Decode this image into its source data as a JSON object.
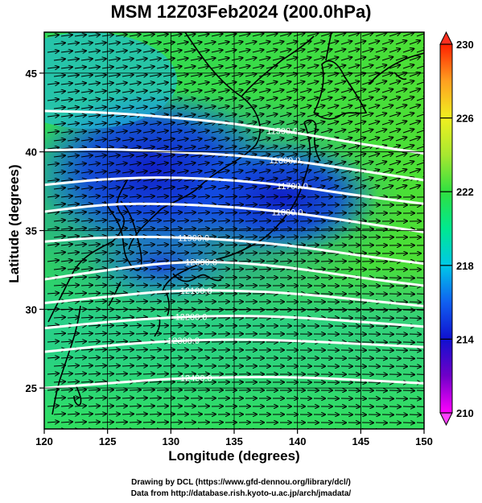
{
  "title": "MSM 12Z03Feb2024 (200.0hPa)",
  "xlabel": "Longitude (degrees)",
  "ylabel": "Latitude  (degrees)",
  "credit_line1": "Drawing by DCL (https://www.gfd-dennou.org/library/dcl/)",
  "credit_line2": "Data from http://database.rish.kyoto-u.ac.jp/arch/jmadata/",
  "chart_data": {
    "type": "heatmap",
    "variable_shading": "temperature (K)",
    "xlim": [
      120,
      150
    ],
    "ylim": [
      22.4,
      47.6
    ],
    "x_ticks": [
      120,
      125,
      130,
      135,
      140,
      145,
      150
    ],
    "x_tick_labels": [
      "120",
      "125",
      "130",
      "135",
      "140",
      "145",
      "150"
    ],
    "y_ticks": [
      25,
      30,
      35,
      40,
      45
    ],
    "y_tick_labels": [
      "25",
      "30",
      "35",
      "40",
      "45"
    ],
    "colorbar": {
      "range": [
        210,
        230
      ],
      "ticks": [
        210,
        214,
        218,
        222,
        226,
        230
      ],
      "tick_labels": [
        "210",
        "214",
        "218",
        "222",
        "226",
        "230"
      ],
      "colormap": [
        "#ff00ff",
        "#7000c8",
        "#1010d0",
        "#1060f0",
        "#00c8e8",
        "#00e890",
        "#30e040",
        "#a8e830",
        "#f0f020",
        "#ffa020",
        "#ff2000"
      ]
    },
    "contours": [
      {
        "label": "11500.0",
        "label_lon": 138.8,
        "points": [
          [
            120,
            42.6
          ],
          [
            125,
            42.5
          ],
          [
            130,
            42.2
          ],
          [
            135,
            41.8
          ],
          [
            140,
            41.2
          ],
          [
            145,
            40.5
          ],
          [
            150,
            39.9
          ]
        ]
      },
      {
        "label": "11600.0",
        "label_lon": 139.0,
        "points": [
          [
            120,
            40.1
          ],
          [
            125,
            40.2
          ],
          [
            130,
            40.0
          ],
          [
            135,
            39.8
          ],
          [
            140,
            39.4
          ],
          [
            145,
            38.8
          ],
          [
            150,
            38.2
          ]
        ]
      },
      {
        "label": "11700.0",
        "label_lon": 139.6,
        "points": [
          [
            120,
            37.9
          ],
          [
            125,
            38.3
          ],
          [
            130,
            38.4
          ],
          [
            135,
            38.2
          ],
          [
            140,
            37.8
          ],
          [
            145,
            37.2
          ],
          [
            150,
            36.7
          ]
        ]
      },
      {
        "label": "11800.0",
        "label_lon": 139.2,
        "points": [
          [
            120,
            36.2
          ],
          [
            125,
            36.7
          ],
          [
            130,
            36.7
          ],
          [
            135,
            36.5
          ],
          [
            140,
            36.1
          ],
          [
            145,
            35.5
          ],
          [
            150,
            34.9
          ]
        ]
      },
      {
        "label": "11900.0",
        "label_lon": 131.8,
        "points": [
          [
            120,
            34.3
          ],
          [
            125,
            34.6
          ],
          [
            130,
            34.6
          ],
          [
            135,
            34.4
          ],
          [
            140,
            34.0
          ],
          [
            145,
            33.4
          ],
          [
            150,
            32.9
          ]
        ]
      },
      {
        "label": "12000.0",
        "label_lon": 132.4,
        "points": [
          [
            120,
            31.9
          ],
          [
            125,
            32.5
          ],
          [
            130,
            33.0
          ],
          [
            135,
            33.0
          ],
          [
            140,
            32.6
          ],
          [
            145,
            32.0
          ],
          [
            150,
            31.5
          ]
        ]
      },
      {
        "label": "12100.0",
        "label_lon": 132.0,
        "points": [
          [
            120,
            30.4
          ],
          [
            125,
            30.8
          ],
          [
            130,
            31.2
          ],
          [
            135,
            31.2
          ],
          [
            140,
            31.0
          ],
          [
            145,
            30.6
          ],
          [
            150,
            30.2
          ]
        ]
      },
      {
        "label": "12200.0",
        "label_lon": 131.6,
        "points": [
          [
            120,
            28.8
          ],
          [
            125,
            29.2
          ],
          [
            130,
            29.5
          ],
          [
            135,
            29.6
          ],
          [
            140,
            29.5
          ],
          [
            145,
            29.2
          ],
          [
            150,
            28.9
          ]
        ]
      },
      {
        "label": "12300.0",
        "label_lon": 131.0,
        "points": [
          [
            120,
            27.3
          ],
          [
            125,
            27.7
          ],
          [
            130,
            28.0
          ],
          [
            135,
            28.1
          ],
          [
            140,
            28.0
          ],
          [
            145,
            27.8
          ],
          [
            150,
            27.6
          ]
        ]
      },
      {
        "label": "12400.0",
        "label_lon": 132.0,
        "points": [
          [
            120,
            25.0
          ],
          [
            125,
            25.3
          ],
          [
            130,
            25.6
          ],
          [
            135,
            25.7
          ],
          [
            140,
            25.7
          ],
          [
            145,
            25.5
          ],
          [
            150,
            25.3
          ]
        ]
      }
    ]
  }
}
